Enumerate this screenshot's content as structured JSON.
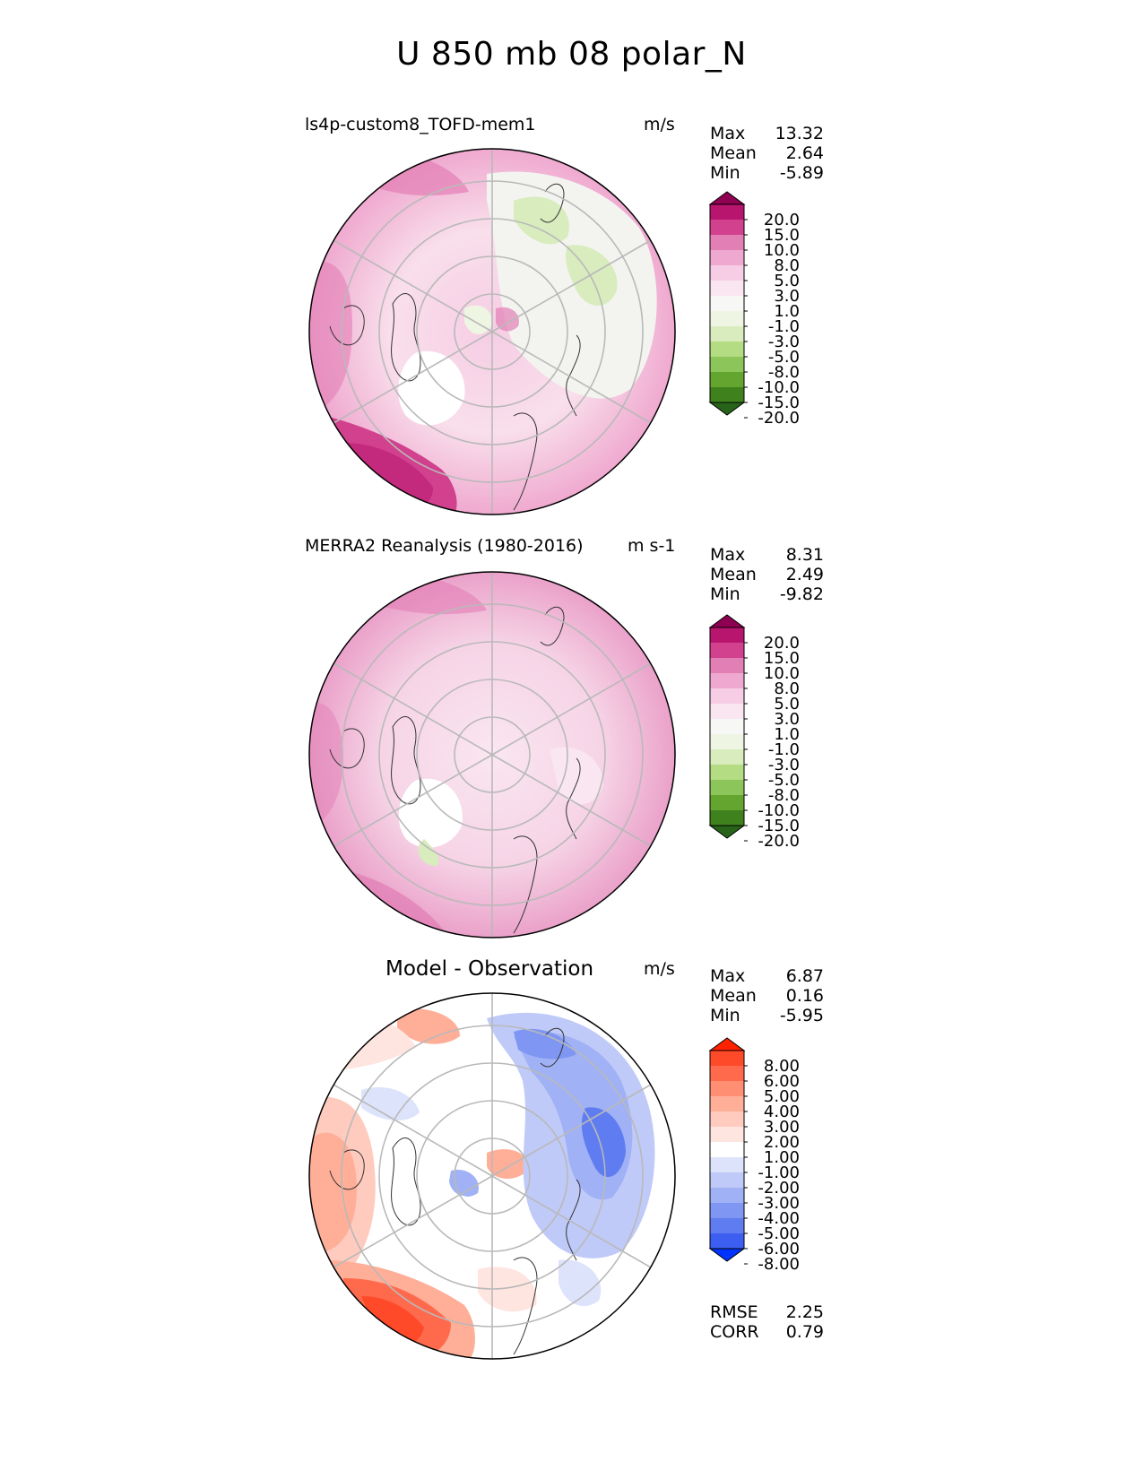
{
  "title": "U 850 mb 08 polar_N",
  "panels": [
    {
      "name": "model",
      "title": "ls4p-custom8_TOFD-mem1",
      "units": "m/s",
      "stats": [
        {
          "label": "Max",
          "value": "13.32"
        },
        {
          "label": "Mean",
          "value": "2.64"
        },
        {
          "label": "Min",
          "value": "-5.89"
        }
      ],
      "colorbar": {
        "labels": [
          "20.0",
          "15.0",
          "10.0",
          "8.0",
          "5.0",
          "3.0",
          "1.0",
          "-1.0",
          "-3.0",
          "-5.0",
          "-8.0",
          "-10.0",
          "-15.0",
          "-20.0"
        ],
        "colors": [
          "#8e0152",
          "#b8156f",
          "#d1418d",
          "#e27fb5",
          "#efa8cf",
          "#f6cde4",
          "#fae6f0",
          "#f7f7f6",
          "#eef5e2",
          "#d8ecbd",
          "#b4dc83",
          "#8cc559",
          "#64a530",
          "#3f821d",
          "#276419"
        ]
      }
    },
    {
      "name": "obs",
      "title": "MERRA2 Reanalysis (1980-2016)",
      "units": "m s-1",
      "stats": [
        {
          "label": "Max",
          "value": "8.31"
        },
        {
          "label": "Mean",
          "value": "2.49"
        },
        {
          "label": "Min",
          "value": "-9.82"
        }
      ],
      "colorbar": {
        "labels": [
          "20.0",
          "15.0",
          "10.0",
          "8.0",
          "5.0",
          "3.0",
          "1.0",
          "-1.0",
          "-3.0",
          "-5.0",
          "-8.0",
          "-10.0",
          "-15.0",
          "-20.0"
        ],
        "colors": [
          "#8e0152",
          "#b8156f",
          "#d1418d",
          "#e27fb5",
          "#efa8cf",
          "#f6cde4",
          "#fae6f0",
          "#f7f7f6",
          "#eef5e2",
          "#d8ecbd",
          "#b4dc83",
          "#8cc559",
          "#64a530",
          "#3f821d",
          "#276419"
        ]
      }
    },
    {
      "name": "diff",
      "title": "Model - Observation",
      "units": "m/s",
      "stats": [
        {
          "label": "Max",
          "value": "6.87"
        },
        {
          "label": "Mean",
          "value": "0.16"
        },
        {
          "label": "Min",
          "value": "-5.95"
        }
      ],
      "colorbar": {
        "labels": [
          "8.00",
          "6.00",
          "5.00",
          "4.00",
          "3.00",
          "2.00",
          "1.00",
          "-1.00",
          "-2.00",
          "-3.00",
          "-4.00",
          "-5.00",
          "-6.00",
          "-8.00"
        ],
        "colors": [
          "#ff2200",
          "#ff4a2a",
          "#ff6a4d",
          "#ff8e73",
          "#ffae98",
          "#ffcbbe",
          "#ffe5df",
          "#ffffff",
          "#dde3fb",
          "#bfcaf8",
          "#a0b2f5",
          "#7f97f2",
          "#5f7df0",
          "#3d5ff1",
          "#0033ff"
        ]
      },
      "extra": [
        {
          "label": "RMSE",
          "value": "2.25"
        },
        {
          "label": "CORR",
          "value": "0.79"
        }
      ]
    }
  ]
}
